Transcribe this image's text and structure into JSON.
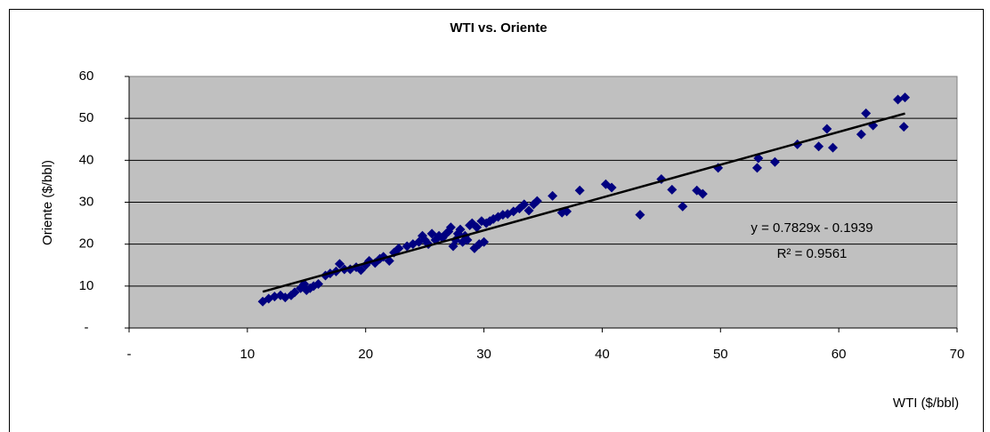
{
  "chart_data": {
    "type": "scatter",
    "title": "WTI vs. Oriente",
    "x_label": "WTI ($/bbl)",
    "y_label": "Oriente ($/bbl)",
    "annotations": [
      "y = 0.7829x - 0.1939",
      "R² = 0.9561"
    ],
    "color": "#000080",
    "plot_background": "#c0c0c0",
    "grid": true,
    "xlim": [
      0,
      70
    ],
    "xticks": [
      {
        "value": 0,
        "label": "-"
      },
      10,
      20,
      30,
      40,
      50,
      60,
      70
    ],
    "ylim": [
      0,
      60
    ],
    "yticks": [
      {
        "value": 0,
        "label": "-"
      },
      10,
      20,
      30,
      40,
      50,
      60
    ],
    "x": [
      11.3,
      11.8,
      12.3,
      12.8,
      13.2,
      13.7,
      14,
      14.5,
      14.8,
      15,
      15.3,
      15.6,
      16,
      16.6,
      17,
      17.5,
      17.8,
      18.2,
      18.7,
      19.2,
      19.6,
      20,
      20.3,
      20.8,
      21.2,
      21.5,
      22,
      22.4,
      22.8,
      23.5,
      24,
      24.5,
      24.8,
      25,
      25.3,
      25.6,
      25.9,
      26.2,
      26.5,
      26.8,
      27,
      27.2,
      27.4,
      27.6,
      27.8,
      28,
      28.2,
      28.4,
      28.6,
      28.8,
      29,
      29.2,
      29.4,
      29.6,
      29.8,
      30,
      30.2,
      30.5,
      30.8,
      31.2,
      31.6,
      32,
      32.5,
      33,
      33.4,
      33.8,
      34.2,
      34.5,
      35.8,
      36.6,
      37,
      38.1,
      40.3,
      40.8,
      43.2,
      45,
      45.9,
      46.8,
      48,
      48.5,
      49.8,
      53.1,
      53.2,
      54.6,
      56.5,
      58.3,
      59,
      59.5,
      61.9,
      62.3,
      62.9,
      65,
      65.5,
      65.6
    ],
    "y": [
      6.3,
      7,
      7.5,
      7.8,
      7.3,
      7.8,
      8.5,
      9.5,
      10.5,
      9,
      9.5,
      10,
      10.5,
      12.5,
      13,
      13.5,
      15.3,
      14,
      14,
      14.5,
      13.8,
      15,
      16,
      15.5,
      16.5,
      17,
      16,
      18,
      19,
      19.5,
      20,
      20.5,
      22,
      21,
      20,
      22.5,
      21,
      22,
      21.5,
      22.5,
      23,
      24,
      19.5,
      21,
      22.5,
      23.5,
      20.5,
      22,
      21,
      24.5,
      25,
      19,
      24,
      20,
      25.5,
      20.5,
      25,
      25.5,
      26,
      26.5,
      27,
      27.2,
      27.8,
      28.5,
      29.5,
      28,
      29.5,
      30.3,
      31.5,
      27.5,
      27.8,
      32.8,
      34.3,
      33.5,
      27,
      35.5,
      33,
      29,
      32.8,
      32,
      38.2,
      38.2,
      40.5,
      39.6,
      43.8,
      43.3,
      47.5,
      43,
      46.2,
      51.2,
      48.3,
      54.5,
      48,
      55
    ],
    "trendline": {
      "color": "#000000",
      "x": [
        11.3,
        65.6
      ],
      "y": [
        8.65,
        51.16
      ]
    }
  }
}
